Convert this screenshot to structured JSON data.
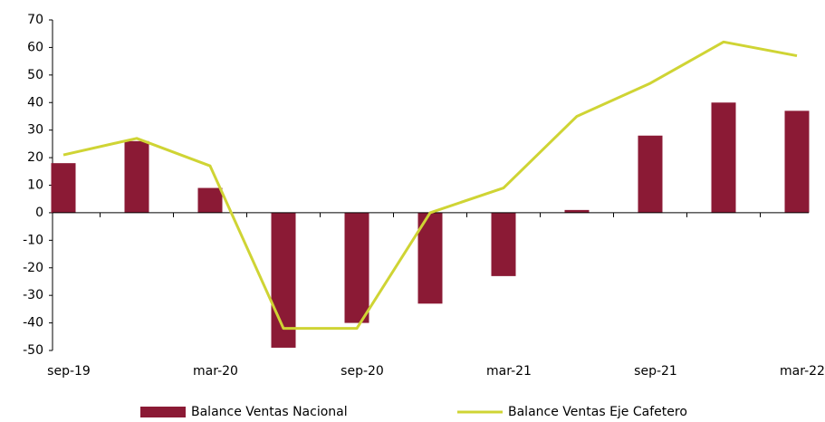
{
  "chart_data": {
    "type": "bar_line",
    "categories": [
      "sep-19",
      null,
      "mar-20",
      null,
      "sep-20",
      null,
      "mar-21",
      null,
      "sep-21",
      null,
      "mar-22"
    ],
    "series": [
      {
        "name": "Balance Ventas Nacional",
        "type": "bar",
        "color": "#8b1a35",
        "values": [
          18,
          26,
          9,
          -49,
          -40,
          -33,
          -23,
          1,
          28,
          40,
          37
        ]
      },
      {
        "name": "Balance Ventas Eje Cafetero",
        "type": "line",
        "color": "#cfd434",
        "values": [
          21,
          27,
          17,
          -42,
          -42,
          0,
          9,
          35,
          47,
          62,
          57
        ]
      }
    ],
    "ylim": [
      -50,
      70
    ],
    "yticks": [
      -50,
      -40,
      -30,
      -20,
      -10,
      0,
      10,
      20,
      30,
      40,
      50,
      60,
      70
    ],
    "grid": false,
    "legend": "bottom"
  }
}
